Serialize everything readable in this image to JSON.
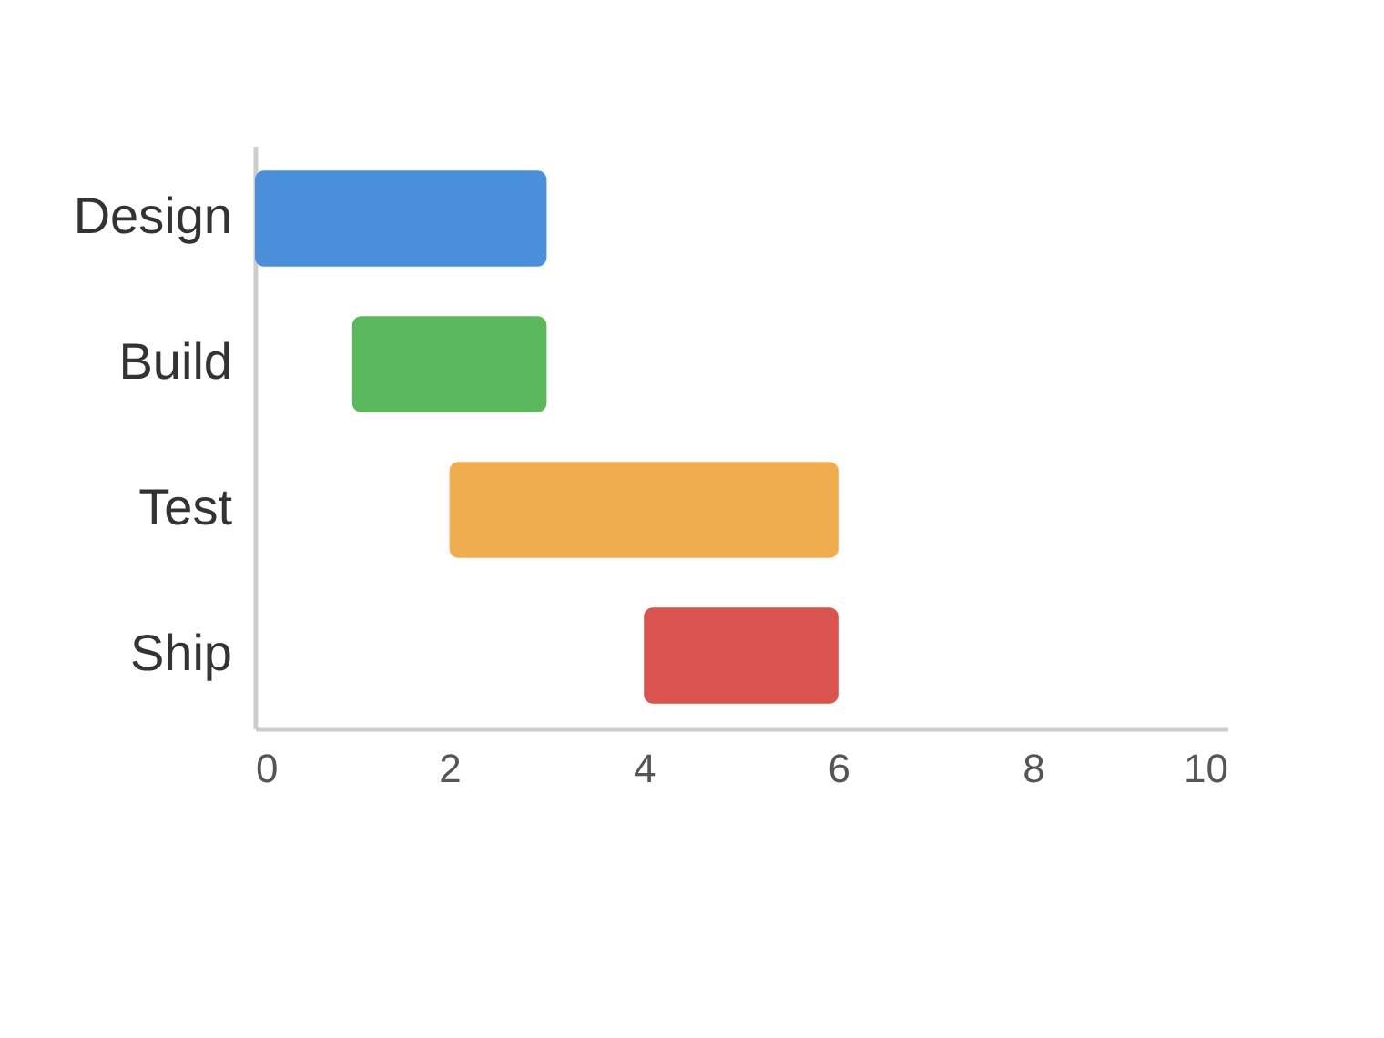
{
  "chart_data": {
    "type": "bar",
    "orientation": "horizontal",
    "categories": [
      "Design",
      "Build",
      "Test",
      "Ship"
    ],
    "base": [
      0,
      1,
      2,
      4
    ],
    "values": [
      3,
      2,
      4,
      2
    ],
    "colors": [
      "#4a90d9",
      "#5cb85c",
      "#f0ad4e",
      "#d9534f"
    ],
    "xlim": [
      0,
      10
    ],
    "xticks": [
      0,
      2,
      4,
      6,
      8,
      10
    ],
    "grid": false,
    "legend": false
  }
}
